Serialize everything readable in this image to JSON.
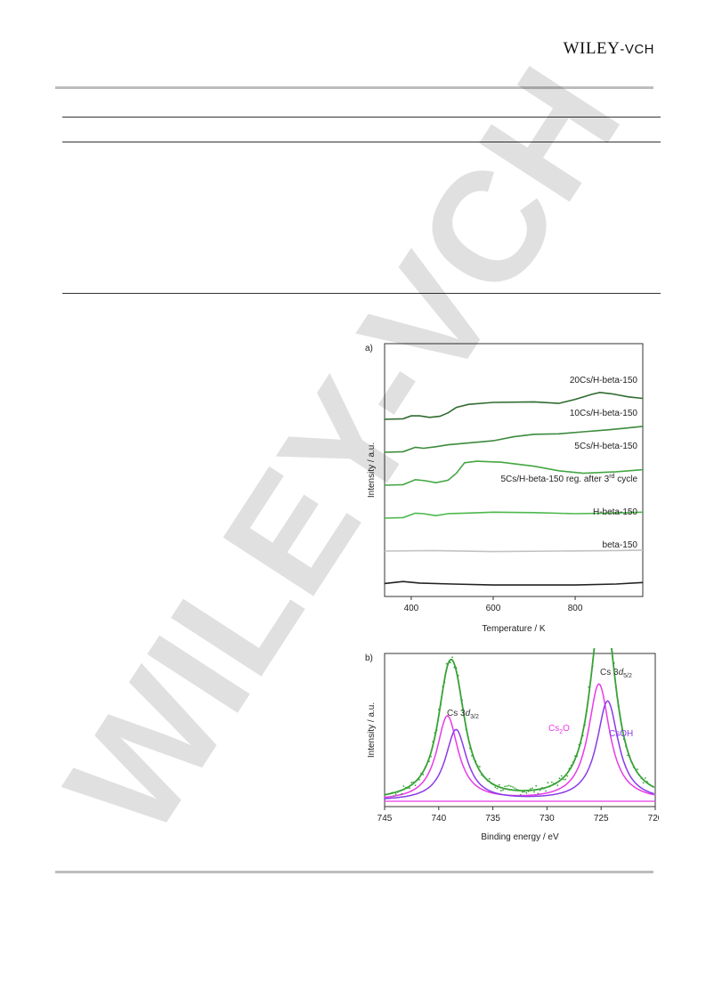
{
  "header": {
    "publisher_main": "WILEY",
    "publisher_sub": "-VCH"
  },
  "watermark": {
    "text": "WILEY-VCH"
  },
  "figure": {
    "panel_a": {
      "label": "a)",
      "chart_data": {
        "type": "line",
        "xlabel": "Temperature / K",
        "ylabel": "Intensity / a.u.",
        "xlim": [
          335,
          965
        ],
        "x_ticks": [
          400,
          600,
          800
        ],
        "grid": false,
        "series": [
          {
            "name": "20Cs/H-beta-150",
            "color": "#2f6b2f",
            "offset": 5,
            "points": [
              [
                335,
                0.0
              ],
              [
                380,
                0.02
              ],
              [
                400,
                0.14
              ],
              [
                420,
                0.14
              ],
              [
                445,
                0.08
              ],
              [
                470,
                0.12
              ],
              [
                490,
                0.26
              ],
              [
                510,
                0.48
              ],
              [
                540,
                0.6
              ],
              [
                600,
                0.68
              ],
              [
                700,
                0.7
              ],
              [
                760,
                0.64
              ],
              [
                800,
                0.8
              ],
              [
                840,
                1.0
              ],
              [
                860,
                1.08
              ],
              [
                890,
                1.02
              ],
              [
                930,
                0.9
              ],
              [
                965,
                0.84
              ]
            ]
          },
          {
            "name": "10Cs/H-beta-150",
            "color": "#3c8a3c",
            "offset": 4,
            "points": [
              [
                335,
                0.0
              ],
              [
                380,
                0.02
              ],
              [
                410,
                0.2
              ],
              [
                430,
                0.16
              ],
              [
                460,
                0.22
              ],
              [
                490,
                0.3
              ],
              [
                530,
                0.36
              ],
              [
                600,
                0.46
              ],
              [
                650,
                0.62
              ],
              [
                700,
                0.72
              ],
              [
                760,
                0.74
              ],
              [
                820,
                0.82
              ],
              [
                880,
                0.9
              ],
              [
                920,
                0.96
              ],
              [
                965,
                1.04
              ]
            ]
          },
          {
            "name": "5Cs/H-beta-150",
            "color": "#44a744",
            "offset": 3,
            "points": [
              [
                335,
                0.0
              ],
              [
                380,
                0.02
              ],
              [
                410,
                0.22
              ],
              [
                435,
                0.18
              ],
              [
                460,
                0.1
              ],
              [
                490,
                0.2
              ],
              [
                510,
                0.48
              ],
              [
                530,
                0.9
              ],
              [
                560,
                0.96
              ],
              [
                620,
                0.92
              ],
              [
                700,
                0.76
              ],
              [
                760,
                0.58
              ],
              [
                820,
                0.48
              ],
              [
                900,
                0.54
              ],
              [
                965,
                0.62
              ]
            ]
          },
          {
            "name": "5Cs/H-beta-150 reg. after 3rd cycle",
            "color": "#4cb84c",
            "offset": 2,
            "points": [
              [
                335,
                0.0
              ],
              [
                380,
                0.02
              ],
              [
                410,
                0.2
              ],
              [
                430,
                0.18
              ],
              [
                460,
                0.1
              ],
              [
                490,
                0.18
              ],
              [
                530,
                0.2
              ],
              [
                600,
                0.24
              ],
              [
                700,
                0.22
              ],
              [
                800,
                0.18
              ],
              [
                880,
                0.2
              ],
              [
                965,
                0.24
              ]
            ]
          },
          {
            "name": "H-beta-150",
            "color": "#c2c2c2",
            "offset": 1,
            "points": [
              [
                335,
                0.0
              ],
              [
                450,
                0.02
              ],
              [
                600,
                -0.02
              ],
              [
                750,
                0.0
              ],
              [
                900,
                0.02
              ],
              [
                965,
                0.04
              ]
            ]
          },
          {
            "name": "beta-150",
            "color": "#222222",
            "offset": 0,
            "points": [
              [
                335,
                0.02
              ],
              [
                380,
                0.1
              ],
              [
                420,
                0.04
              ],
              [
                500,
                0.0
              ],
              [
                600,
                -0.04
              ],
              [
                700,
                -0.04
              ],
              [
                800,
                -0.04
              ],
              [
                900,
                0.0
              ],
              [
                965,
                0.06
              ]
            ]
          }
        ]
      }
    },
    "panel_b": {
      "label": "b)",
      "chart_data": {
        "type": "line",
        "xlabel": "Binding energy / eV",
        "ylabel": "Intensity / a.u.",
        "xlim": [
          745,
          720
        ],
        "x_ticks": [
          745,
          740,
          735,
          730,
          725,
          720
        ],
        "grid": false,
        "annotations": [
          {
            "text": "Cs 3d3/2",
            "color": "#333333"
          },
          {
            "text": "Cs 3d5/2",
            "color": "#333333"
          },
          {
            "text": "Cs2O",
            "color": "#e83ae8"
          },
          {
            "text": "CsOH",
            "color": "#8a3ae8"
          }
        ],
        "components": [
          {
            "name": "Cs2O",
            "color": "#e83ae8",
            "peaks": [
              {
                "center": 739.2,
                "height": 0.5,
                "width": 1.2
              },
              {
                "center": 725.2,
                "height": 0.69,
                "width": 1.2
              }
            ]
          },
          {
            "name": "CsOH",
            "color": "#8a3ae8",
            "peaks": [
              {
                "center": 738.4,
                "height": 0.42,
                "width": 1.2
              },
              {
                "center": 724.4,
                "height": 0.59,
                "width": 1.2
              }
            ]
          }
        ],
        "envelope_color": "#37a237",
        "data_color": "#37a237",
        "baseline_color": "#e83ae8"
      }
    }
  }
}
